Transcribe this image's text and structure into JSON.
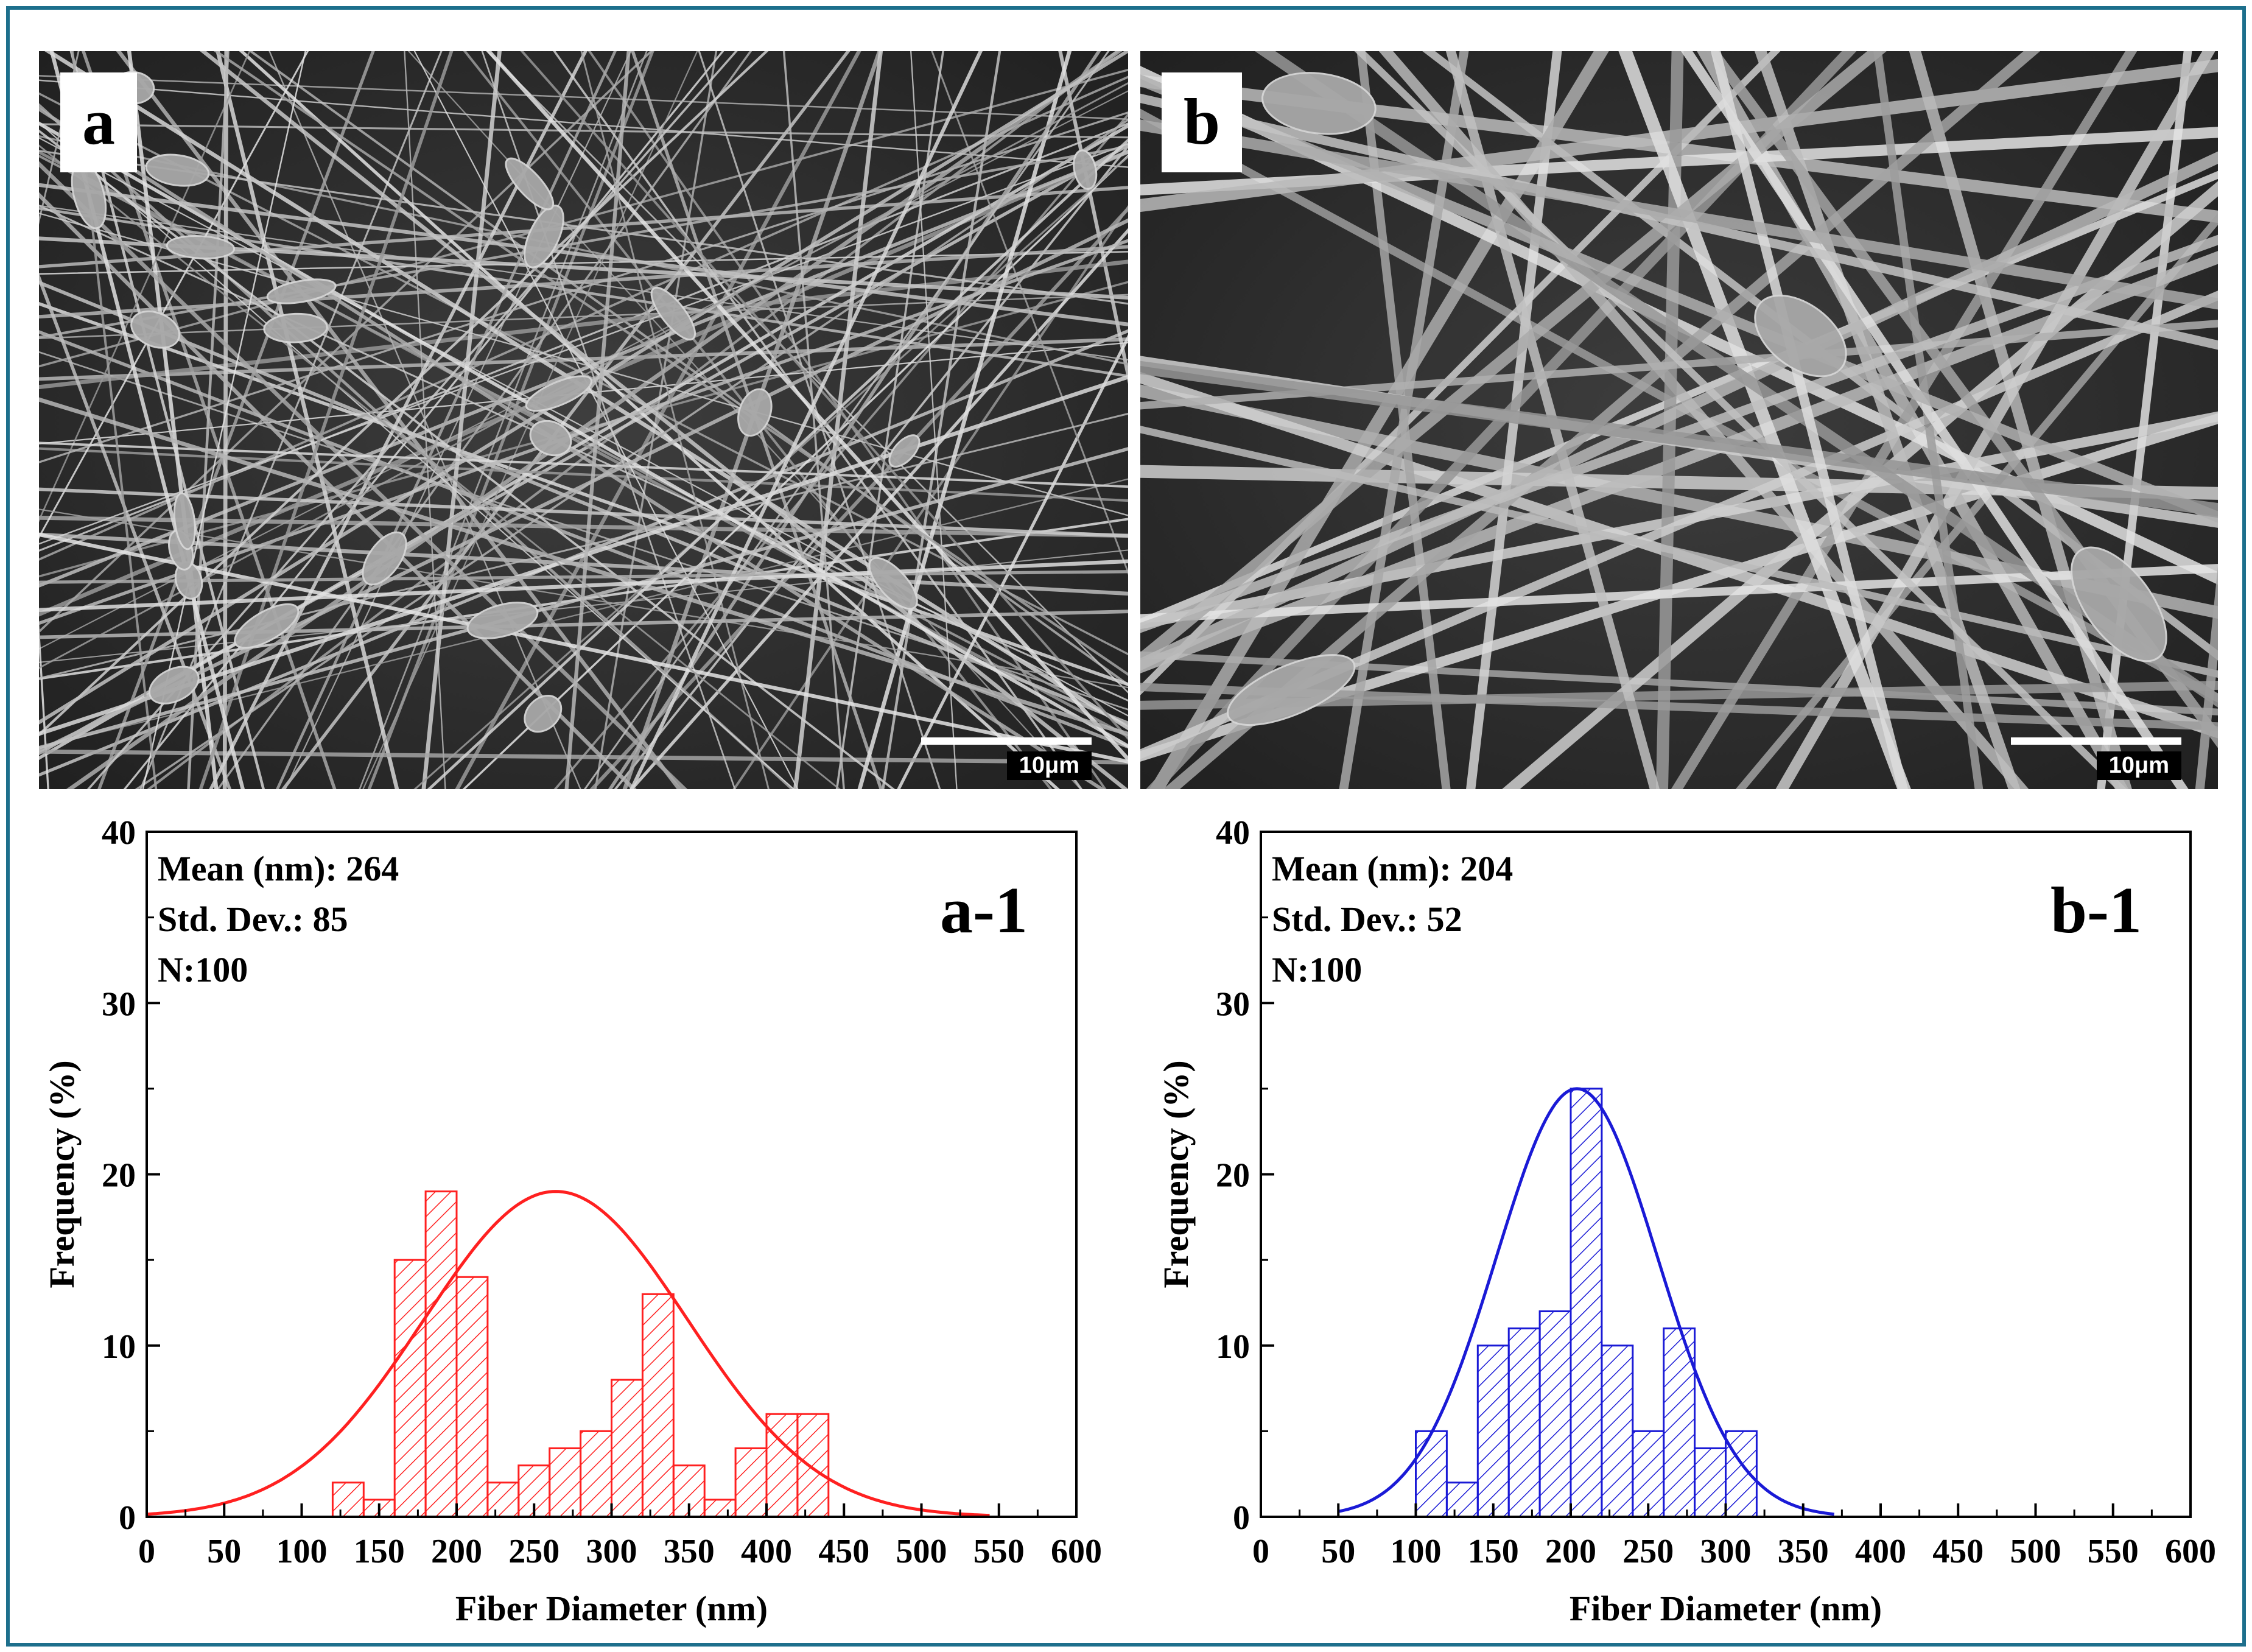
{
  "panels": {
    "a": {
      "label": "a",
      "scale_bar": "10μm"
    },
    "b": {
      "label": "b",
      "scale_bar": "10μm"
    }
  },
  "colors": {
    "frame": "#1d6f8c",
    "series_a": "#ff2020",
    "series_b": "#1a1ad6"
  },
  "chart_data": [
    {
      "type": "bar",
      "panel_label": "a-1",
      "xlabel": "Fiber Diameter (nm)",
      "ylabel": "Frequency (%)",
      "xlim": [
        0,
        600
      ],
      "ylim": [
        0,
        40
      ],
      "xticks": [
        0,
        50,
        100,
        150,
        200,
        250,
        300,
        350,
        400,
        450,
        500,
        550,
        600
      ],
      "yticks": [
        0,
        10,
        20,
        30,
        40
      ],
      "stats": [
        "Mean (nm): 264",
        "Std. Dev.: 85",
        "N:100"
      ],
      "bin_width": 20,
      "bin_starts": [
        120,
        140,
        160,
        180,
        200,
        220,
        240,
        260,
        280,
        300,
        320,
        340,
        360,
        380,
        400,
        420
      ],
      "values": [
        2,
        1,
        15,
        19,
        14,
        2,
        3,
        4,
        5,
        8,
        13,
        3,
        1,
        4,
        6,
        6
      ],
      "fit": {
        "type": "normal",
        "mean": 264,
        "std": 85,
        "peak": 19,
        "range": [
          0,
          545
        ]
      },
      "color": "#ff2020",
      "grid": false
    },
    {
      "type": "bar",
      "panel_label": "b-1",
      "xlabel": "Fiber Diameter (nm)",
      "ylabel": "Frequency (%)",
      "xlim": [
        0,
        600
      ],
      "ylim": [
        0,
        40
      ],
      "xticks": [
        0,
        50,
        100,
        150,
        200,
        250,
        300,
        350,
        400,
        450,
        500,
        550,
        600
      ],
      "yticks": [
        0,
        10,
        20,
        30,
        40
      ],
      "stats": [
        "Mean (nm): 204",
        "Std. Dev.: 52",
        "N:100"
      ],
      "bin_width": 20,
      "bin_starts": [
        100,
        120,
        140,
        160,
        180,
        200,
        220,
        240,
        260,
        280,
        300
      ],
      "values": [
        5,
        2,
        10,
        11,
        12,
        25,
        10,
        5,
        11,
        4,
        5
      ],
      "fit": {
        "type": "normal",
        "mean": 204,
        "std": 52,
        "peak": 25,
        "range": [
          50,
          370
        ]
      },
      "color": "#1a1ad6",
      "grid": false
    }
  ]
}
